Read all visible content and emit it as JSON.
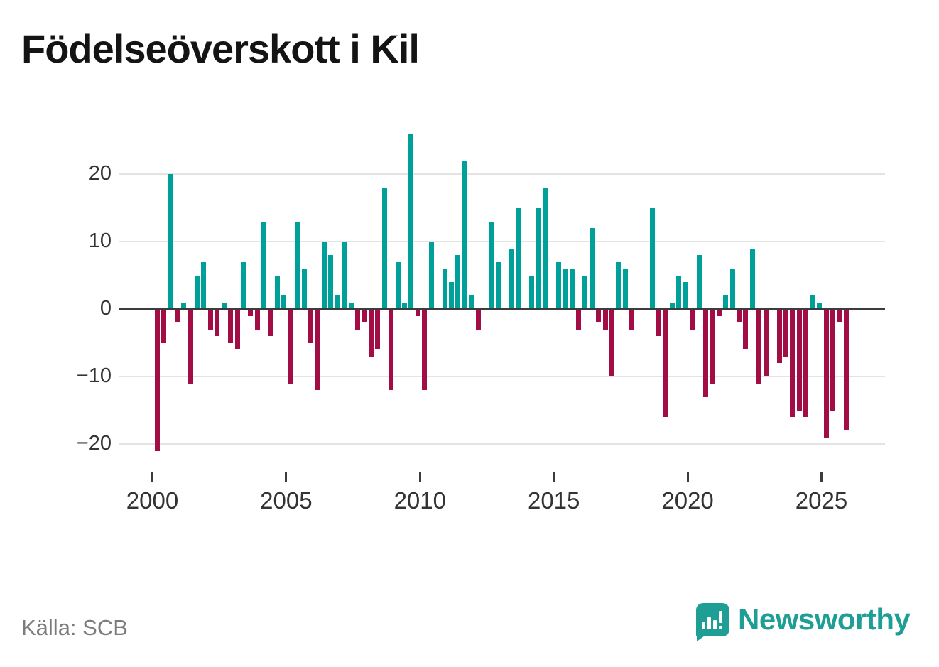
{
  "title": "Födelseöverskott i Kil",
  "source_label": "Källa: SCB",
  "brand": {
    "name": "Newsworthy",
    "color": "#1f9e95",
    "icon": "speech-bubble-bar-chart-icon"
  },
  "chart_data": {
    "type": "bar",
    "title": "Födelseöverskott i Kil",
    "xlabel": "",
    "ylabel": "",
    "period": "quarterly",
    "start_quarter": "2000-Q1",
    "end_quarter": "2025-Q4",
    "values": [
      -21,
      -5,
      20,
      -2,
      1,
      -11,
      5,
      7,
      -3,
      -4,
      1,
      -5,
      -6,
      7,
      -1,
      -3,
      13,
      -4,
      5,
      2,
      -11,
      13,
      6,
      -5,
      -12,
      10,
      8,
      2,
      10,
      1,
      -3,
      -2,
      -7,
      -6,
      18,
      -12,
      7,
      1,
      26,
      -1,
      -12,
      10,
      0,
      6,
      4,
      8,
      22,
      2,
      -3,
      0,
      13,
      7,
      0,
      9,
      15,
      0,
      5,
      15,
      18,
      0,
      7,
      6,
      6,
      -3,
      5,
      12,
      -2,
      -3,
      -10,
      7,
      6,
      -3,
      0,
      0,
      15,
      -4,
      -16,
      1,
      5,
      4,
      -3,
      8,
      -13,
      -11,
      -1,
      2,
      6,
      -2,
      -6,
      9,
      -11,
      -10,
      0,
      -8,
      -7,
      -16,
      -15,
      -16,
      2,
      1,
      -19,
      -15,
      -2,
      -18
    ],
    "x_tick_labels": [
      "2000",
      "2005",
      "2010",
      "2015",
      "2020",
      "2025"
    ],
    "y_tick_labels": [
      "20",
      "10",
      "0",
      "−10",
      "−20"
    ],
    "y_ticks": [
      20,
      10,
      0,
      -10,
      -20
    ],
    "ylim": [
      -22,
      27
    ],
    "grid": "horizontal",
    "legend": "none",
    "positive_color": "#00A09A",
    "negative_color": "#A30D45",
    "source": "SCB"
  }
}
